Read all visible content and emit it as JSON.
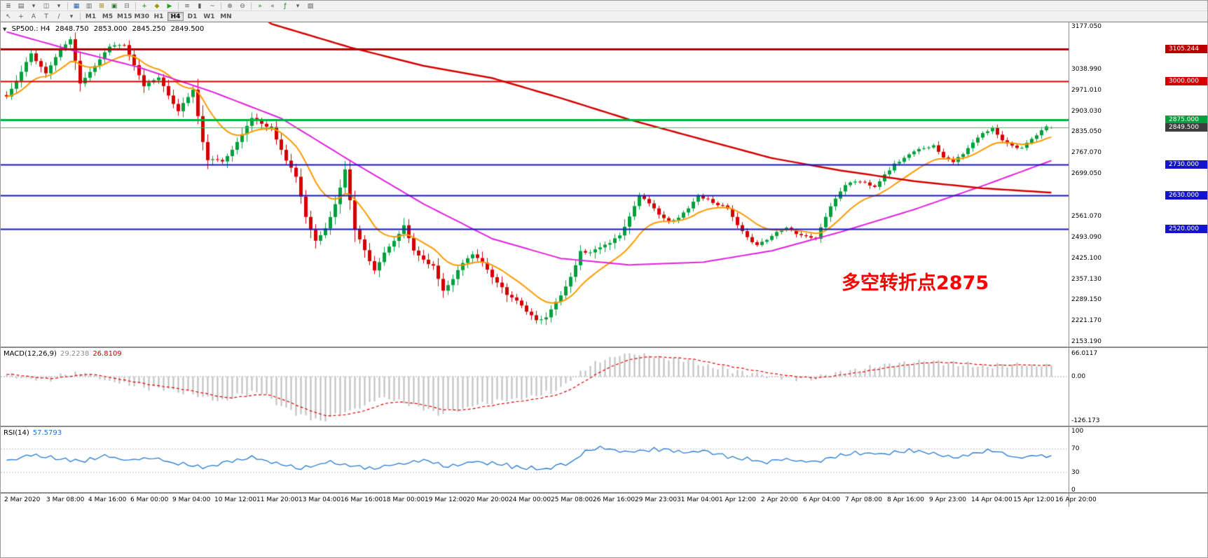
{
  "toolbar": {
    "row1": [
      {
        "name": "menu-icon",
        "glyph": "≣"
      },
      {
        "name": "new-chart-icon",
        "glyph": "▤"
      },
      {
        "name": "new-chart-dropdown-icon",
        "glyph": "▾"
      },
      {
        "name": "profiles-icon",
        "glyph": "◫"
      },
      {
        "name": "profiles-dropdown-icon",
        "glyph": "▾"
      },
      {
        "name": "separator"
      },
      {
        "name": "market-watch-icon",
        "glyph": "▦",
        "color": "#2a62ad"
      },
      {
        "name": "data-window-icon",
        "glyph": "▥",
        "color": "#6b6b6b"
      },
      {
        "name": "navigator-icon",
        "glyph": "⊞",
        "color": "#a97b00"
      },
      {
        "name": "terminal-icon",
        "glyph": "▣",
        "color": "#2e7d32"
      },
      {
        "name": "strategy-tester-icon",
        "glyph": "⊟",
        "color": "#6b6b6b"
      },
      {
        "name": "separator"
      },
      {
        "name": "new-order-icon",
        "glyph": "+",
        "color": "#008f00"
      },
      {
        "name": "metaeditor-icon",
        "glyph": "◆",
        "color": "#999900"
      },
      {
        "name": "autotrading-icon",
        "glyph": "▶",
        "color": "#1fa11f"
      },
      {
        "name": "separator"
      },
      {
        "name": "bar-chart-icon",
        "glyph": "≡"
      },
      {
        "name": "candlestick-chart-icon",
        "glyph": "▮"
      },
      {
        "name": "line-chart-icon",
        "glyph": "~"
      },
      {
        "name": "separator"
      },
      {
        "name": "zoom-in-icon",
        "glyph": "⊕"
      },
      {
        "name": "zoom-out-icon",
        "glyph": "⊖"
      },
      {
        "name": "separator"
      },
      {
        "name": "auto-scroll-icon",
        "glyph": "»",
        "color": "#2e7d32"
      },
      {
        "name": "chart-shift-icon",
        "glyph": "«"
      },
      {
        "name": "indicators-icon",
        "glyph": "ƒ",
        "color": "#008f00"
      },
      {
        "name": "periods-dropdown-icon",
        "glyph": "▾"
      },
      {
        "name": "templates-icon",
        "glyph": "▨"
      }
    ],
    "row2_tools": [
      {
        "name": "cursor-icon",
        "glyph": "↖"
      },
      {
        "name": "crosshair-icon",
        "glyph": "+"
      },
      {
        "name": "text-label-icon",
        "glyph": "A"
      },
      {
        "name": "text-icon",
        "glyph": "T"
      },
      {
        "name": "trendline-icon",
        "glyph": "/"
      },
      {
        "name": "draw-tools-dropdown-icon",
        "glyph": "▾"
      },
      {
        "name": "separator"
      }
    ],
    "timeframes": {
      "items": [
        "M1",
        "M5",
        "M15",
        "M30",
        "H1",
        "H4",
        "D1",
        "W1",
        "MN"
      ],
      "active": "H4"
    }
  },
  "chart": {
    "ohlc_line": {
      "collapse_icon": "▼",
      "symbol_period": "SP500.: H4",
      "open": "2848.750",
      "high": "2853.000",
      "low": "2845.250",
      "close": "2849.500"
    },
    "annotation": {
      "text": "多空转折点2875",
      "color": "#ff0000"
    },
    "y_axis_labels": [
      "3177.050",
      "3038.990",
      "2971.010",
      "2903.030",
      "2835.050",
      "2767.070",
      "2699.050",
      "2561.070",
      "2493.090",
      "2425.100",
      "2357.130",
      "2289.150",
      "2221.170",
      "2153.190"
    ],
    "price_tags": [
      {
        "text": "3105.244",
        "bg": "#b80000"
      },
      {
        "text": "3000.000",
        "bg": "#d40000"
      },
      {
        "text": "2875.000",
        "bg": "#00a03c"
      },
      {
        "text": "2849.500",
        "bg": "#3d3d3d"
      },
      {
        "text": "2730.000",
        "bg": "#1414c8"
      },
      {
        "text": "2630.000",
        "bg": "#1414c8"
      },
      {
        "text": "2520.000",
        "bg": "#1414c8"
      }
    ]
  },
  "macd_panel": {
    "title": "MACD(12,26,9)",
    "main_value": "29.2238",
    "signal_value": "26.8109",
    "axis_labels": [
      "66.0117",
      "0.00",
      "-126.173"
    ]
  },
  "rsi_panel": {
    "title": "RSI(14)",
    "value": "57.5793",
    "axis_labels": [
      "100",
      "70",
      "30",
      "0"
    ]
  },
  "dates": [
    "2 Mar 2020",
    "3 Mar 08:00",
    "4 Mar 16:00",
    "6 Mar 00:00",
    "9 Mar 04:00",
    "10 Mar 12:00",
    "11 Mar 20:00",
    "13 Mar 04:00",
    "16 Mar 16:00",
    "18 Mar 00:00",
    "19 Mar 12:00",
    "20 Mar 20:00",
    "24 Mar 00:00",
    "25 Mar 08:00",
    "26 Mar 16:00",
    "29 Mar 23:00",
    "31 Mar 04:00",
    "1 Apr 12:00",
    "2 Apr 20:00",
    "6 Apr 04:00",
    "7 Apr 08:00",
    "8 Apr 16:00",
    "9 Apr 23:00",
    "14 Apr 04:00",
    "15 Apr 12:00",
    "16 Apr 20:00"
  ],
  "chart_data": {
    "type": "candlestick",
    "symbol": "SP500.",
    "timeframe": "H4",
    "bars": 214,
    "ylim": [
      2137.7,
      3191.0
    ],
    "up_color": "#00a03c",
    "down_color": "#d40000",
    "last_bar": {
      "open": 2848.75,
      "high": 2853.0,
      "low": 2845.25,
      "close": 2849.5
    },
    "close_anchors": [
      [
        0,
        2950
      ],
      [
        2,
        3000
      ],
      [
        5,
        3090
      ],
      [
        8,
        3025
      ],
      [
        11,
        3105
      ],
      [
        13,
        3135
      ],
      [
        15,
        2995
      ],
      [
        18,
        3050
      ],
      [
        21,
        3115
      ],
      [
        24,
        3118
      ],
      [
        26,
        3050
      ],
      [
        28,
        2985
      ],
      [
        31,
        3015
      ],
      [
        33,
        2950
      ],
      [
        35,
        2905
      ],
      [
        38,
        2972
      ],
      [
        40,
        2800
      ],
      [
        41,
        2746
      ],
      [
        44,
        2740
      ],
      [
        47,
        2800
      ],
      [
        50,
        2882
      ],
      [
        52,
        2860
      ],
      [
        54,
        2850
      ],
      [
        57,
        2741
      ],
      [
        59,
        2690
      ],
      [
        61,
        2560
      ],
      [
        63,
        2480
      ],
      [
        65,
        2520
      ],
      [
        67,
        2600
      ],
      [
        69,
        2711
      ],
      [
        71,
        2520
      ],
      [
        73,
        2450
      ],
      [
        75,
        2386
      ],
      [
        77,
        2440
      ],
      [
        79,
        2480
      ],
      [
        81,
        2529
      ],
      [
        83,
        2450
      ],
      [
        85,
        2420
      ],
      [
        87,
        2398
      ],
      [
        89,
        2320
      ],
      [
        91,
        2360
      ],
      [
        93,
        2409
      ],
      [
        95,
        2440
      ],
      [
        97,
        2410
      ],
      [
        99,
        2360
      ],
      [
        101,
        2330
      ],
      [
        102,
        2305
      ],
      [
        104,
        2290
      ],
      [
        106,
        2250
      ],
      [
        108,
        2222
      ],
      [
        110,
        2235
      ],
      [
        112,
        2280
      ],
      [
        114,
        2330
      ],
      [
        116,
        2400
      ],
      [
        117,
        2447
      ],
      [
        119,
        2445
      ],
      [
        121,
        2460
      ],
      [
        123,
        2476
      ],
      [
        125,
        2500
      ],
      [
        127,
        2560
      ],
      [
        129,
        2630
      ],
      [
        131,
        2600
      ],
      [
        133,
        2570
      ],
      [
        135,
        2541
      ],
      [
        137,
        2555
      ],
      [
        139,
        2590
      ],
      [
        141,
        2627
      ],
      [
        143,
        2615
      ],
      [
        145,
        2600
      ],
      [
        147,
        2585
      ],
      [
        149,
        2530
      ],
      [
        151,
        2490
      ],
      [
        153,
        2470
      ],
      [
        155,
        2485
      ],
      [
        157,
        2510
      ],
      [
        159,
        2527
      ],
      [
        161,
        2505
      ],
      [
        163,
        2495
      ],
      [
        165,
        2489
      ],
      [
        167,
        2560
      ],
      [
        169,
        2620
      ],
      [
        171,
        2664
      ],
      [
        173,
        2675
      ],
      [
        175,
        2670
      ],
      [
        177,
        2659
      ],
      [
        179,
        2695
      ],
      [
        181,
        2730
      ],
      [
        183,
        2750
      ],
      [
        185,
        2770
      ],
      [
        187,
        2785
      ],
      [
        189,
        2790
      ],
      [
        191,
        2755
      ],
      [
        193,
        2740
      ],
      [
        195,
        2762
      ],
      [
        197,
        2800
      ],
      [
        199,
        2830
      ],
      [
        201,
        2846
      ],
      [
        203,
        2810
      ],
      [
        205,
        2790
      ],
      [
        207,
        2783
      ],
      [
        209,
        2810
      ],
      [
        211,
        2838
      ],
      [
        212,
        2856
      ],
      [
        213,
        2849.5
      ]
    ],
    "horizontal_lines": [
      {
        "price": 3105.244,
        "color": "#b80000",
        "width": 3
      },
      {
        "price": 3000.0,
        "color": "#d40000",
        "width": 2
      },
      {
        "price": 2875.0,
        "color": "#00b43c",
        "width": 3
      },
      {
        "price": 2849.5,
        "color": "#58b058",
        "width": 1
      },
      {
        "price": 2730.0,
        "color": "#1414c8",
        "width": 2
      },
      {
        "price": 2630.0,
        "color": "#1414c8",
        "width": 2
      },
      {
        "price": 2520.0,
        "color": "#1414c8",
        "width": 2
      }
    ],
    "moving_averages": [
      {
        "name": "fast",
        "color": "#ff9a00",
        "type": "ema",
        "period": 13
      },
      {
        "name": "medium",
        "color": "#e020e0",
        "anchors": [
          [
            0,
            3160
          ],
          [
            13,
            3102
          ],
          [
            27,
            3045
          ],
          [
            42,
            2965
          ],
          [
            56,
            2879
          ],
          [
            70,
            2742
          ],
          [
            85,
            2601
          ],
          [
            99,
            2488
          ],
          [
            113,
            2424
          ],
          [
            127,
            2403
          ],
          [
            142,
            2412
          ],
          [
            156,
            2449
          ],
          [
            170,
            2510
          ],
          [
            185,
            2583
          ],
          [
            199,
            2660
          ],
          [
            213,
            2742
          ]
        ]
      },
      {
        "name": "slow",
        "color": "#d40000",
        "anchors": [
          [
            50,
            3230
          ],
          [
            54,
            3186
          ],
          [
            70,
            3110
          ],
          [
            85,
            3050
          ],
          [
            99,
            3010
          ],
          [
            113,
            2945
          ],
          [
            127,
            2875
          ],
          [
            142,
            2810
          ],
          [
            156,
            2750
          ],
          [
            170,
            2710
          ],
          [
            185,
            2675
          ],
          [
            199,
            2652
          ],
          [
            213,
            2638
          ]
        ]
      }
    ],
    "macd": {
      "params": [
        12,
        26,
        9
      ],
      "ylim": [
        -140,
        82
      ],
      "current_main": 29.2238,
      "current_signal": 26.8109,
      "hist_color": "#bdbdbd",
      "signal_color": "#e00000",
      "main_anchors": [
        [
          0,
          5
        ],
        [
          4,
          -5
        ],
        [
          8,
          -12
        ],
        [
          12,
          8
        ],
        [
          16,
          12
        ],
        [
          20,
          -10
        ],
        [
          24,
          -18
        ],
        [
          28,
          -30
        ],
        [
          32,
          -35
        ],
        [
          36,
          -45
        ],
        [
          40,
          -60
        ],
        [
          44,
          -70
        ],
        [
          48,
          -50
        ],
        [
          52,
          -45
        ],
        [
          56,
          -85
        ],
        [
          60,
          -110
        ],
        [
          64,
          -126
        ],
        [
          68,
          -105
        ],
        [
          72,
          -90
        ],
        [
          76,
          -62
        ],
        [
          80,
          -70
        ],
        [
          84,
          -85
        ],
        [
          88,
          -105
        ],
        [
          92,
          -95
        ],
        [
          96,
          -80
        ],
        [
          100,
          -72
        ],
        [
          104,
          -62
        ],
        [
          108,
          -55
        ],
        [
          112,
          -40
        ],
        [
          115,
          -10
        ],
        [
          118,
          25
        ],
        [
          121,
          45
        ],
        [
          124,
          58
        ],
        [
          128,
          66
        ],
        [
          132,
          60
        ],
        [
          136,
          50
        ],
        [
          140,
          42
        ],
        [
          144,
          30
        ],
        [
          148,
          18
        ],
        [
          152,
          8
        ],
        [
          156,
          0
        ],
        [
          160,
          -4
        ],
        [
          164,
          -6
        ],
        [
          168,
          6
        ],
        [
          172,
          18
        ],
        [
          176,
          28
        ],
        [
          180,
          36
        ],
        [
          184,
          42
        ],
        [
          188,
          45
        ],
        [
          192,
          40
        ],
        [
          196,
          34
        ],
        [
          200,
          30
        ],
        [
          204,
          35
        ],
        [
          208,
          33
        ],
        [
          213,
          29.22
        ]
      ]
    },
    "rsi": {
      "period": 14,
      "current": 57.5793,
      "ylim": [
        0,
        100
      ],
      "levels": [
        70,
        30
      ],
      "color": "#2379d2",
      "anchors": [
        [
          0,
          50
        ],
        [
          5,
          60
        ],
        [
          10,
          55
        ],
        [
          15,
          48
        ],
        [
          20,
          58
        ],
        [
          25,
          50
        ],
        [
          30,
          55
        ],
        [
          35,
          45
        ],
        [
          40,
          38
        ],
        [
          45,
          48
        ],
        [
          50,
          55
        ],
        [
          55,
          45
        ],
        [
          60,
          35
        ],
        [
          65,
          48
        ],
        [
          70,
          42
        ],
        [
          75,
          36
        ],
        [
          80,
          45
        ],
        [
          85,
          50
        ],
        [
          90,
          38
        ],
        [
          95,
          48
        ],
        [
          100,
          45
        ],
        [
          105,
          38
        ],
        [
          110,
          36
        ],
        [
          115,
          48
        ],
        [
          118,
          65
        ],
        [
          122,
          73
        ],
        [
          126,
          64
        ],
        [
          130,
          67
        ],
        [
          134,
          70
        ],
        [
          138,
          64
        ],
        [
          142,
          67
        ],
        [
          146,
          59
        ],
        [
          150,
          54
        ],
        [
          154,
          47
        ],
        [
          158,
          54
        ],
        [
          162,
          50
        ],
        [
          166,
          48
        ],
        [
          170,
          60
        ],
        [
          174,
          64
        ],
        [
          178,
          61
        ],
        [
          182,
          65
        ],
        [
          186,
          68
        ],
        [
          190,
          59
        ],
        [
          194,
          54
        ],
        [
          198,
          64
        ],
        [
          202,
          67
        ],
        [
          206,
          54
        ],
        [
          210,
          59
        ],
        [
          213,
          57.58
        ]
      ]
    }
  }
}
